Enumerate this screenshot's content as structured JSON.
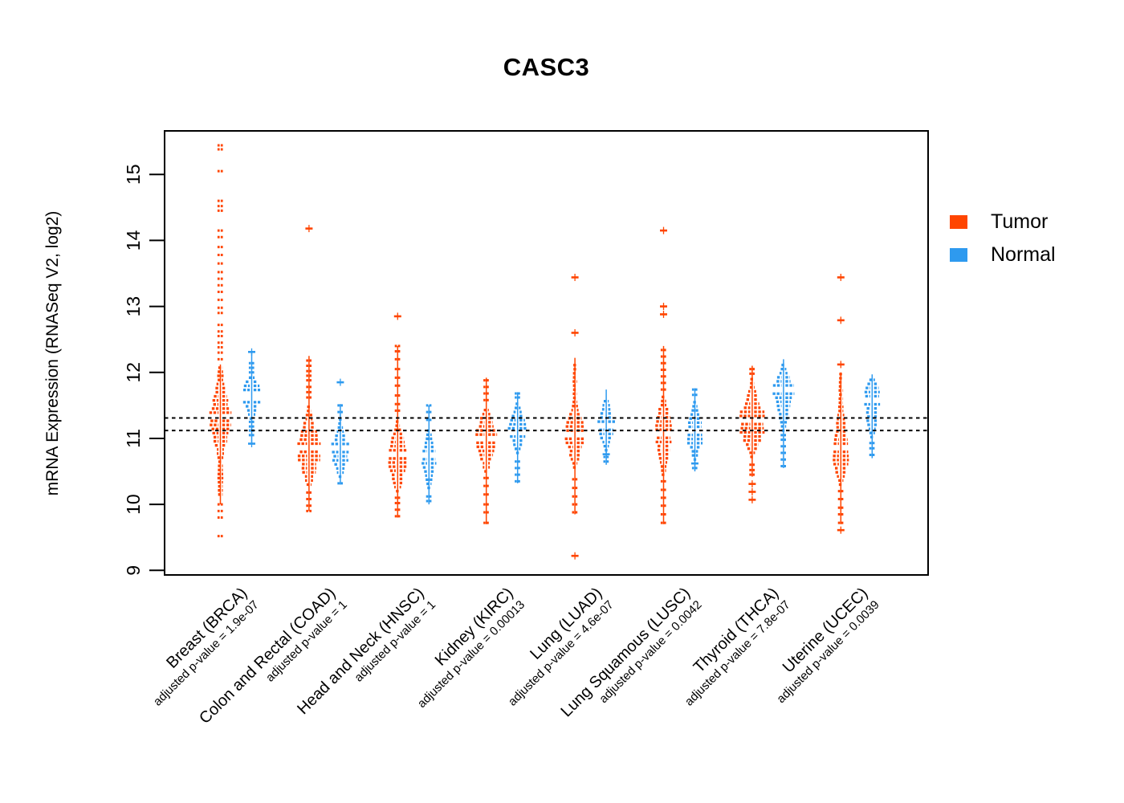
{
  "title": "CASC3",
  "y_axis_title": "mRNA Expression (RNASeq V2, log2)",
  "legend": {
    "position": "right",
    "items": [
      {
        "label": "Tumor",
        "color": "#FF4500"
      },
      {
        "label": "Normal",
        "color": "#2E9AEF"
      }
    ]
  },
  "chart_data": {
    "type": "violin",
    "subtype": "paired tumor-normal strip/violin plot, R-style",
    "title": "CASC3",
    "ylabel": "mRNA Expression (RNASeq V2, log2)",
    "xlabel": "",
    "ylim": [
      9,
      15.66
    ],
    "yticks": [
      9,
      10,
      11,
      12,
      13,
      14,
      15
    ],
    "grid": false,
    "reference_lines": {
      "style": "black dotted",
      "values": [
        11.31,
        11.12
      ]
    },
    "groups": [
      {
        "id": "BRCA",
        "name": "Breast (BRCA)",
        "pvalue_label": "adjusted p-value = 1.9e-07",
        "adjusted_p_value": "1.9e-07"
      },
      {
        "id": "COAD",
        "name": "Colon and Rectal (COAD)",
        "pvalue_label": "adjusted p-value = 1",
        "adjusted_p_value": "1"
      },
      {
        "id": "HNSC",
        "name": "Head and Neck (HNSC)",
        "pvalue_label": "adjusted p-value = 1",
        "adjusted_p_value": "1"
      },
      {
        "id": "KIRC",
        "name": "Kidney (KIRC)",
        "pvalue_label": "adjusted p-value = 0.00013",
        "adjusted_p_value": "0.00013"
      },
      {
        "id": "LUAD",
        "name": "Lung (LUAD)",
        "pvalue_label": "adjusted p-value = 4.6e-07",
        "adjusted_p_value": "4.6e-07"
      },
      {
        "id": "LUSC",
        "name": "Lung Squamous (LUSC)",
        "pvalue_label": "adjusted p-value = 0.0042",
        "adjusted_p_value": "0.0042"
      },
      {
        "id": "THCA",
        "name": "Thyroid (THCA)",
        "pvalue_label": "adjusted p-value = 7.8e-07",
        "adjusted_p_value": "7.8e-07"
      },
      {
        "id": "UCEC",
        "name": "Uterine (UCEC)",
        "pvalue_label": "adjusted p-value = 0.0039",
        "adjusted_p_value": "0.0039"
      }
    ],
    "series": [
      {
        "group": "BRCA",
        "cohort": "tumor",
        "median": 11.35,
        "spine": [
          10.0,
          12.12
        ],
        "profile": [
          [
            10.15,
            5
          ],
          [
            10.28,
            7
          ],
          [
            10.4,
            8
          ],
          [
            10.52,
            6
          ],
          [
            10.64,
            5
          ],
          [
            10.76,
            8
          ],
          [
            10.88,
            12
          ],
          [
            11.0,
            16
          ],
          [
            11.12,
            20
          ],
          [
            11.24,
            24
          ],
          [
            11.36,
            25
          ],
          [
            11.48,
            22
          ],
          [
            11.6,
            17
          ],
          [
            11.72,
            12
          ],
          [
            11.84,
            9
          ],
          [
            11.96,
            7
          ],
          [
            12.08,
            6
          ]
        ],
        "dashes": [
          9.52,
          9.8,
          9.9,
          10.0,
          12.2,
          12.3,
          12.38,
          12.45,
          12.55,
          12.62,
          12.72,
          12.9,
          12.98,
          13.1,
          13.22,
          13.32,
          13.42,
          13.52,
          13.65,
          13.78,
          13.9,
          14.05,
          14.15,
          14.45,
          14.52,
          14.6,
          15.05,
          15.38,
          15.44
        ],
        "outliers": []
      },
      {
        "group": "BRCA",
        "cohort": "normal",
        "median": 11.64,
        "spine": [
          10.92,
          12.31
        ],
        "profile": [
          [
            11.3,
            5
          ],
          [
            11.38,
            10
          ],
          [
            11.46,
            16
          ],
          [
            11.54,
            22
          ],
          [
            11.62,
            26
          ],
          [
            11.7,
            24
          ],
          [
            11.78,
            19
          ],
          [
            11.86,
            13
          ],
          [
            11.94,
            7
          ]
        ],
        "dashes": [
          11.05,
          11.12,
          11.18,
          11.25,
          12.0,
          12.07,
          12.14
        ],
        "outliers": [
          10.92,
          12.31
        ]
      },
      {
        "group": "COAD",
        "cohort": "tumor",
        "median": 10.88,
        "spine": [
          9.9,
          12.25
        ],
        "profile": [
          [
            10.3,
            6
          ],
          [
            10.42,
            12
          ],
          [
            10.55,
            18
          ],
          [
            10.68,
            24
          ],
          [
            10.8,
            27
          ],
          [
            10.92,
            26
          ],
          [
            11.05,
            21
          ],
          [
            11.18,
            15
          ],
          [
            11.3,
            9
          ],
          [
            11.42,
            6
          ],
          [
            11.52,
            5
          ]
        ],
        "dashes": [
          9.9,
          9.98,
          10.08,
          10.18,
          11.62,
          11.7,
          11.78,
          11.88,
          11.95,
          12.02,
          12.1,
          12.18
        ],
        "outliers": [
          14.18
        ]
      },
      {
        "group": "COAD",
        "cohort": "normal",
        "median": 10.85,
        "spine": [
          10.3,
          11.52
        ],
        "profile": [
          [
            10.42,
            5
          ],
          [
            10.52,
            9
          ],
          [
            10.62,
            15
          ],
          [
            10.72,
            20
          ],
          [
            10.82,
            22
          ],
          [
            10.92,
            19
          ],
          [
            11.02,
            14
          ],
          [
            11.12,
            9
          ],
          [
            11.22,
            6
          ],
          [
            11.3,
            4
          ]
        ],
        "dashes": [
          10.32,
          11.4,
          11.5
        ],
        "outliers": [
          11.85
        ]
      },
      {
        "group": "HNSC",
        "cohort": "tumor",
        "median": 10.78,
        "spine": [
          9.8,
          12.4
        ],
        "profile": [
          [
            10.2,
            5
          ],
          [
            10.33,
            10
          ],
          [
            10.46,
            17
          ],
          [
            10.58,
            23
          ],
          [
            10.7,
            26
          ],
          [
            10.83,
            24
          ],
          [
            10.96,
            18
          ],
          [
            11.08,
            11
          ],
          [
            11.2,
            6
          ],
          [
            11.3,
            4
          ]
        ],
        "dashes": [
          9.82,
          9.92,
          10.02,
          10.1,
          11.42,
          11.52,
          11.65,
          11.8,
          11.92,
          12.05,
          12.2,
          12.32,
          12.4
        ],
        "outliers": [
          12.85
        ]
      },
      {
        "group": "HNSC",
        "cohort": "normal",
        "median": 10.72,
        "spine": [
          10.0,
          11.5
        ],
        "profile": [
          [
            10.25,
            4
          ],
          [
            10.35,
            7
          ],
          [
            10.45,
            11
          ],
          [
            10.55,
            16
          ],
          [
            10.65,
            19
          ],
          [
            10.75,
            18
          ],
          [
            10.85,
            14
          ],
          [
            10.95,
            10
          ],
          [
            11.05,
            6
          ],
          [
            11.14,
            4
          ]
        ],
        "dashes": [
          10.05,
          10.12,
          11.28,
          11.4,
          11.5
        ],
        "outliers": []
      },
      {
        "group": "KIRC",
        "cohort": "tumor",
        "median": 10.98,
        "spine": [
          9.7,
          11.92
        ],
        "profile": [
          [
            10.5,
            5
          ],
          [
            10.62,
            10
          ],
          [
            10.73,
            17
          ],
          [
            10.84,
            23
          ],
          [
            10.95,
            27
          ],
          [
            11.06,
            25
          ],
          [
            11.17,
            21
          ],
          [
            11.28,
            15
          ],
          [
            11.39,
            9
          ],
          [
            11.48,
            5
          ]
        ],
        "dashes": [
          9.72,
          9.88,
          10.0,
          10.15,
          10.28,
          10.4,
          11.58,
          11.68,
          11.78,
          11.88
        ],
        "outliers": []
      },
      {
        "group": "KIRC",
        "cohort": "normal",
        "median": 11.1,
        "spine": [
          10.32,
          11.7
        ],
        "profile": [
          [
            10.78,
            4
          ],
          [
            10.88,
            9
          ],
          [
            10.98,
            16
          ],
          [
            11.08,
            22
          ],
          [
            11.18,
            21
          ],
          [
            11.28,
            16
          ],
          [
            11.38,
            10
          ],
          [
            11.47,
            6
          ],
          [
            11.55,
            4
          ]
        ],
        "dashes": [
          10.35,
          10.45,
          10.55,
          10.65,
          11.62,
          11.68
        ],
        "outliers": []
      },
      {
        "group": "LUAD",
        "cohort": "tumor",
        "median": 11.08,
        "spine": [
          9.85,
          12.22
        ],
        "profile": [
          [
            10.56,
            5
          ],
          [
            10.68,
            9
          ],
          [
            10.8,
            15
          ],
          [
            10.93,
            22
          ],
          [
            11.06,
            26
          ],
          [
            11.18,
            24
          ],
          [
            11.3,
            18
          ],
          [
            11.42,
            11
          ],
          [
            11.54,
            6
          ],
          [
            11.66,
            5
          ],
          [
            11.78,
            5
          ],
          [
            11.9,
            5
          ],
          [
            12.02,
            4
          ],
          [
            12.14,
            4
          ]
        ],
        "dashes": [
          9.88,
          10.0,
          10.12,
          10.25,
          10.38
        ],
        "outliers": [
          13.44,
          12.6,
          9.22
        ]
      },
      {
        "group": "LUAD",
        "cohort": "normal",
        "median": 11.18,
        "spine": [
          10.6,
          11.74
        ],
        "profile": [
          [
            10.82,
            4
          ],
          [
            10.92,
            8
          ],
          [
            11.02,
            14
          ],
          [
            11.12,
            20
          ],
          [
            11.22,
            22
          ],
          [
            11.32,
            18
          ],
          [
            11.42,
            12
          ],
          [
            11.52,
            7
          ],
          [
            11.6,
            4
          ]
        ],
        "dashes": [
          10.65,
          10.72
        ],
        "outliers": [
          10.76
        ]
      },
      {
        "group": "LUSC",
        "cohort": "tumor",
        "median": 11.05,
        "spine": [
          9.7,
          12.4
        ],
        "profile": [
          [
            10.45,
            5
          ],
          [
            10.58,
            8
          ],
          [
            10.7,
            12
          ],
          [
            10.82,
            16
          ],
          [
            10.94,
            19
          ],
          [
            11.06,
            21
          ],
          [
            11.18,
            20
          ],
          [
            11.3,
            17
          ],
          [
            11.42,
            12
          ],
          [
            11.54,
            7
          ],
          [
            11.64,
            5
          ]
        ],
        "dashes": [
          9.72,
          9.85,
          9.98,
          10.1,
          10.22,
          10.35,
          11.74,
          11.84,
          11.94,
          12.04,
          12.14,
          12.24,
          12.34
        ],
        "outliers": [
          14.15,
          13.0,
          12.88
        ]
      },
      {
        "group": "LUSC",
        "cohort": "normal",
        "median": 11.1,
        "spine": [
          10.5,
          11.76
        ],
        "profile": [
          [
            10.68,
            4
          ],
          [
            10.78,
            8
          ],
          [
            10.88,
            14
          ],
          [
            10.98,
            19
          ],
          [
            11.08,
            21
          ],
          [
            11.18,
            19
          ],
          [
            11.28,
            15
          ],
          [
            11.38,
            10
          ],
          [
            11.48,
            6
          ],
          [
            11.56,
            4
          ]
        ],
        "dashes": [
          10.55,
          11.66,
          11.74
        ],
        "outliers": [
          10.62
        ]
      },
      {
        "group": "THCA",
        "cohort": "tumor",
        "median": 11.28,
        "spine": [
          10.42,
          12.1
        ],
        "profile": [
          [
            10.72,
            5
          ],
          [
            10.85,
            11
          ],
          [
            10.98,
            20
          ],
          [
            11.1,
            28
          ],
          [
            11.22,
            32
          ],
          [
            11.34,
            30
          ],
          [
            11.46,
            24
          ],
          [
            11.58,
            16
          ],
          [
            11.7,
            9
          ],
          [
            11.82,
            5
          ],
          [
            11.93,
            4
          ]
        ],
        "dashes": [
          10.45,
          10.52,
          10.6,
          11.98,
          12.05
        ],
        "outliers": [
          10.07,
          10.19,
          10.31
        ]
      },
      {
        "group": "THCA",
        "cohort": "normal",
        "median": 11.72,
        "spine": [
          10.55,
          12.2
        ],
        "profile": [
          [
            11.12,
            4
          ],
          [
            11.24,
            8
          ],
          [
            11.36,
            13
          ],
          [
            11.48,
            17
          ],
          [
            11.6,
            21
          ],
          [
            11.72,
            24
          ],
          [
            11.82,
            22
          ],
          [
            11.92,
            16
          ],
          [
            12.02,
            10
          ],
          [
            12.12,
            5
          ]
        ],
        "dashes": [
          10.58,
          10.68,
          10.78,
          10.88,
          10.98,
          11.05
        ],
        "outliers": []
      },
      {
        "group": "UCEC",
        "cohort": "tumor",
        "median": 10.88,
        "spine": [
          9.7,
          12.0
        ],
        "profile": [
          [
            10.3,
            5
          ],
          [
            10.43,
            10
          ],
          [
            10.56,
            16
          ],
          [
            10.68,
            20
          ],
          [
            10.8,
            22
          ],
          [
            10.92,
            21
          ],
          [
            11.04,
            17
          ],
          [
            11.16,
            13
          ],
          [
            11.28,
            9
          ],
          [
            11.4,
            7
          ],
          [
            11.52,
            6
          ],
          [
            11.64,
            5
          ],
          [
            11.76,
            5
          ],
          [
            11.88,
            4
          ],
          [
            11.98,
            4
          ]
        ],
        "dashes": [
          9.72,
          9.85,
          9.95,
          10.08,
          10.2
        ],
        "outliers": [
          13.44,
          12.79,
          12.12,
          9.61
        ]
      },
      {
        "group": "UCEC",
        "cohort": "normal",
        "median": 11.6,
        "spine": [
          10.7,
          11.97
        ],
        "profile": [
          [
            11.02,
            5
          ],
          [
            11.12,
            10
          ],
          [
            11.22,
            13
          ],
          [
            11.32,
            12
          ],
          [
            11.42,
            14
          ],
          [
            11.52,
            18
          ],
          [
            11.62,
            20
          ],
          [
            11.72,
            18
          ],
          [
            11.82,
            12
          ],
          [
            11.92,
            6
          ]
        ],
        "dashes": [
          10.75,
          10.85,
          10.93
        ],
        "outliers": []
      }
    ]
  }
}
